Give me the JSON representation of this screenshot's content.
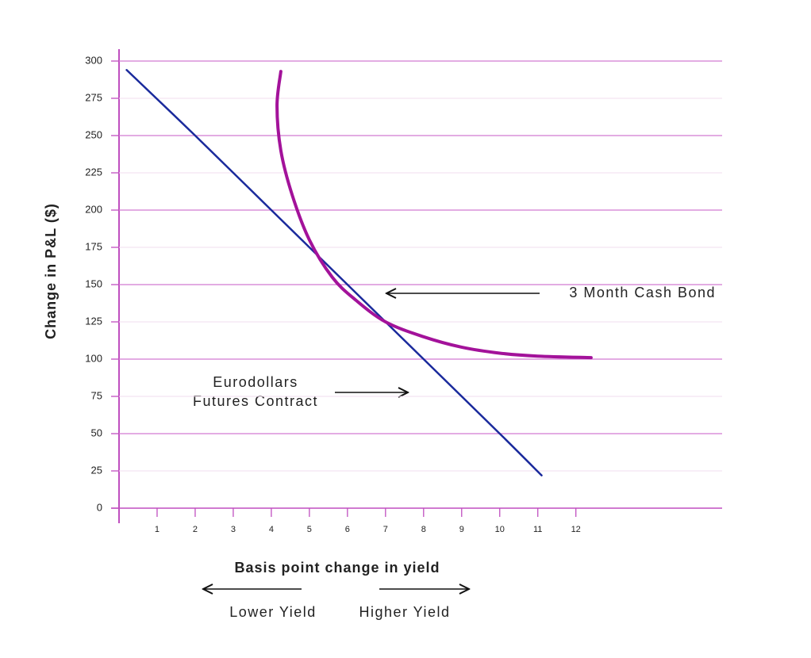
{
  "chart_data": {
    "type": "line",
    "x_label": "Basis point change in yield",
    "y_label": "Change in P&L ($)",
    "xlim": [
      0,
      15.8
    ],
    "xticks": [
      1,
      2,
      3,
      4,
      5,
      6,
      7,
      8,
      9,
      10,
      11,
      12
    ],
    "ylim": [
      0,
      300
    ],
    "yticks": [
      0,
      25,
      50,
      75,
      100,
      125,
      150,
      175,
      200,
      225,
      250,
      275,
      300
    ],
    "grid": true,
    "series": [
      {
        "name": "Eurodollars Futures Contract",
        "color": "#1a2a9c",
        "x": [
          0.2,
          2,
          4,
          6,
          8,
          10,
          11.1
        ],
        "values": [
          294,
          250,
          200,
          150,
          100,
          50,
          22
        ]
      },
      {
        "name": "3 Month Cash Bond",
        "color": "#a3129a",
        "x": [
          4.25,
          4.15,
          4.25,
          4.55,
          5.0,
          5.6,
          6.2,
          7.0,
          8.0,
          9.0,
          10.0,
          11.0,
          12.4
        ],
        "values": [
          293,
          270,
          240,
          210,
          180,
          155,
          140,
          125,
          115,
          108,
          104,
          102,
          101
        ]
      }
    ],
    "annotations": [
      "3 Month Cash Bond",
      "Eurodollars",
      "Futures Contract",
      "Lower Yield",
      "Higher Yield"
    ]
  }
}
